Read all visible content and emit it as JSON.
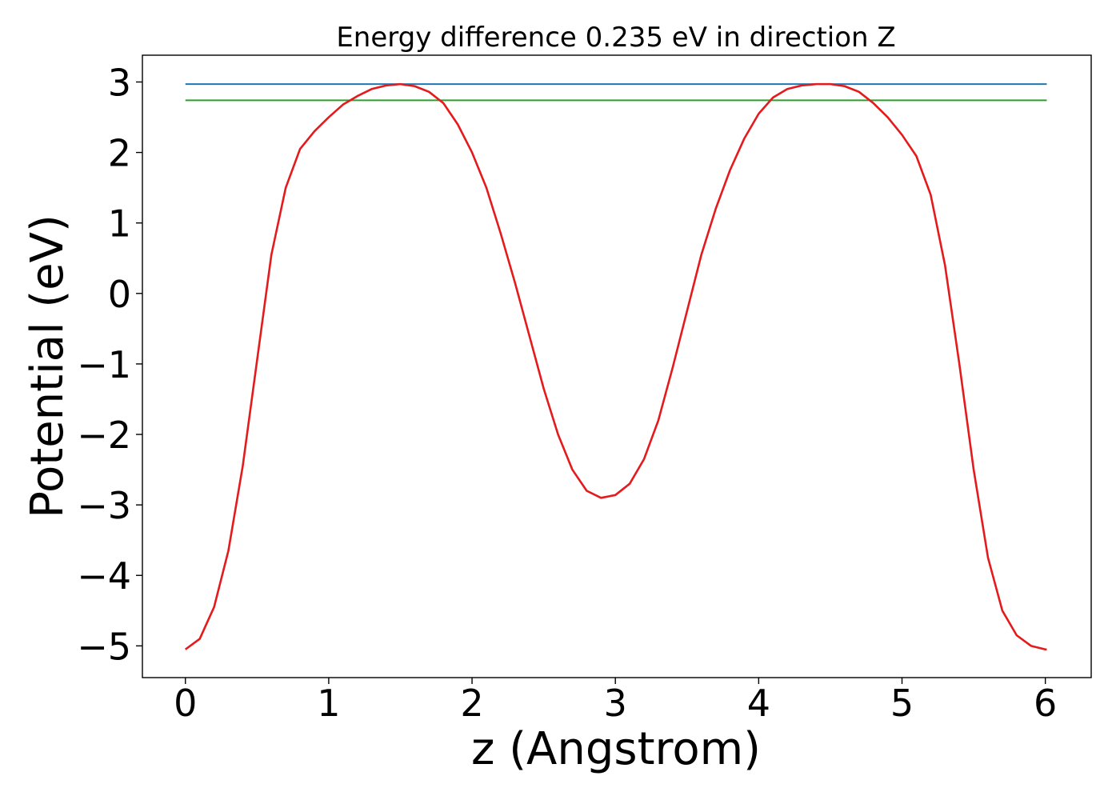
{
  "chart_data": {
    "type": "line",
    "title": "Energy difference 0.235 eV in direction Z",
    "xlabel": "z (Angstrom)",
    "ylabel": "Potential (eV)",
    "xlim": [
      -0.3,
      6.32
    ],
    "ylim": [
      -5.45,
      3.38
    ],
    "x_ticks": [
      0,
      1,
      2,
      3,
      4,
      5,
      6
    ],
    "x_tick_labels": [
      "0",
      "1",
      "2",
      "3",
      "4",
      "5",
      "6"
    ],
    "y_ticks": [
      3,
      2,
      1,
      0,
      -1,
      -2,
      -3,
      -4,
      -5
    ],
    "y_tick_labels": [
      "3",
      "2",
      "1",
      "0",
      "−1",
      "−2",
      "−3",
      "−4",
      "−5"
    ],
    "grid": false,
    "series": [
      {
        "color": "#1f77b4",
        "x": [
          0.0,
          6.01
        ],
        "y": [
          2.97,
          2.97
        ]
      },
      {
        "color": "#2ca02c",
        "x": [
          0.0,
          6.01
        ],
        "y": [
          2.74,
          2.74
        ]
      },
      {
        "color": "#e41a1c",
        "x": [
          0.0,
          0.1,
          0.2,
          0.3,
          0.4,
          0.5,
          0.6,
          0.7,
          0.8,
          0.9,
          1.0,
          1.1,
          1.2,
          1.3,
          1.4,
          1.5,
          1.6,
          1.7,
          1.8,
          1.9,
          2.0,
          2.1,
          2.2,
          2.3,
          2.4,
          2.5,
          2.6,
          2.7,
          2.8,
          2.9,
          3.0,
          3.1,
          3.2,
          3.3,
          3.4,
          3.5,
          3.6,
          3.7,
          3.8,
          3.9,
          4.0,
          4.1,
          4.2,
          4.3,
          4.4,
          4.5,
          4.6,
          4.7,
          4.8,
          4.9,
          5.0,
          5.1,
          5.2,
          5.3,
          5.4,
          5.5,
          5.6,
          5.7,
          5.8,
          5.9,
          6.0,
          6.01
        ],
        "y": [
          -5.05,
          -4.9,
          -4.45,
          -3.65,
          -2.45,
          -0.95,
          0.55,
          1.5,
          2.05,
          2.3,
          2.5,
          2.68,
          2.8,
          2.9,
          2.95,
          2.97,
          2.94,
          2.86,
          2.7,
          2.4,
          2.0,
          1.5,
          0.85,
          0.15,
          -0.6,
          -1.35,
          -2.0,
          -2.5,
          -2.8,
          -2.9,
          -2.86,
          -2.7,
          -2.35,
          -1.8,
          -1.05,
          -0.25,
          0.55,
          1.2,
          1.75,
          2.2,
          2.55,
          2.78,
          2.9,
          2.95,
          2.97,
          2.97,
          2.94,
          2.86,
          2.7,
          2.5,
          2.25,
          1.95,
          1.4,
          0.4,
          -1.0,
          -2.5,
          -3.75,
          -4.5,
          -4.85,
          -5.0,
          -5.05,
          -5.05
        ]
      }
    ]
  }
}
